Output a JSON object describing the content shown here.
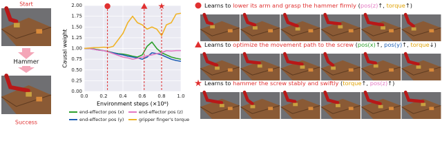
{
  "left": {
    "start": "Start",
    "action": "Hammer",
    "end": "Success"
  },
  "chart_data": {
    "type": "line",
    "ylabel": "Causal weight",
    "xlabel": "Environment steps (×10⁶)",
    "xlim": [
      0,
      1
    ],
    "ylim": [
      0,
      2
    ],
    "xticks": [
      {
        "value": 0,
        "label": "0.0"
      },
      0.2,
      0.4,
      0.6,
      0.8,
      {
        "value": 1,
        "label": "1.0"
      }
    ],
    "yticks": [
      {
        "value": 0,
        "label": "0.00"
      },
      0.25,
      {
        "value": 0.5,
        "label": "0.50"
      },
      0.75,
      {
        "value": 1,
        "label": "1.00"
      },
      1.25,
      {
        "value": 1.5,
        "label": "1.50"
      },
      1.75,
      {
        "value": 2,
        "label": "2.00"
      }
    ],
    "grid": true,
    "vlines": [
      0.24,
      0.62,
      0.8
    ],
    "vline_markers": [
      "circle",
      "triangle",
      "star"
    ],
    "vline_color": "#e03030",
    "x": [
      0,
      0.05,
      0.1,
      0.15,
      0.2,
      0.25,
      0.3,
      0.35,
      0.4,
      0.45,
      0.5,
      0.55,
      0.6,
      0.65,
      0.7,
      0.75,
      0.8,
      0.85,
      0.9,
      0.95,
      1.0
    ],
    "series": [
      {
        "name": "end-effector pos (x)",
        "color": "#2ca02c",
        "values": [
          1.0,
          1.0,
          0.99,
          0.97,
          0.95,
          0.93,
          0.9,
          0.88,
          0.87,
          0.85,
          0.82,
          0.8,
          0.85,
          1.05,
          1.15,
          1.0,
          0.9,
          0.85,
          0.8,
          0.77,
          0.75
        ]
      },
      {
        "name": "end-effector pos (y)",
        "color": "#1f5fb4",
        "values": [
          1.0,
          1.0,
          0.98,
          0.96,
          0.95,
          0.92,
          0.9,
          0.87,
          0.85,
          0.82,
          0.8,
          0.78,
          0.75,
          0.8,
          0.9,
          0.88,
          0.85,
          0.8,
          0.75,
          0.72,
          0.7
        ]
      },
      {
        "name": "end-effector pos (z)",
        "color": "#e377c2",
        "values": [
          1.0,
          1.0,
          0.98,
          0.96,
          0.95,
          0.92,
          0.88,
          0.84,
          0.8,
          0.78,
          0.75,
          0.77,
          0.8,
          0.83,
          0.85,
          0.88,
          0.9,
          0.95,
          0.94,
          0.95,
          0.95
        ]
      },
      {
        "name": "gripper finger's torque",
        "color": "#f0b429",
        "values": [
          1.0,
          1.01,
          1.02,
          1.02,
          1.03,
          1.02,
          1.05,
          1.2,
          1.35,
          1.6,
          1.75,
          1.6,
          1.55,
          1.45,
          1.5,
          1.45,
          1.3,
          1.55,
          1.6,
          1.8,
          1.82
        ]
      }
    ]
  },
  "rows": [
    {
      "marker": "circle",
      "segments": [
        {
          "text": "Learns to ",
          "color": "#111"
        },
        {
          "text": "lower its arm and grasp the hammer firmly",
          "color": "#e03030"
        },
        {
          "text": " (",
          "color": "#111"
        },
        {
          "text": "pos(z)",
          "color": "#e377c2"
        },
        {
          "text": "↑, ",
          "color": "#111"
        },
        {
          "text": "torque",
          "color": "#e0a000"
        },
        {
          "text": "↑)",
          "color": "#111"
        }
      ]
    },
    {
      "marker": "triangle",
      "segments": [
        {
          "text": "Learns to ",
          "color": "#111"
        },
        {
          "text": "optimize the movement path to the screw",
          "color": "#e03030"
        },
        {
          "text": " (",
          "color": "#111"
        },
        {
          "text": "pos(x)",
          "color": "#2ca02c"
        },
        {
          "text": "↑, ",
          "color": "#111"
        },
        {
          "text": "pos(y)",
          "color": "#1f5fb4"
        },
        {
          "text": "↑, ",
          "color": "#111"
        },
        {
          "text": "torque",
          "color": "#e0a000"
        },
        {
          "text": "↓)",
          "color": "#111"
        }
      ]
    },
    {
      "marker": "star",
      "segments": [
        {
          "text": "Learns to ",
          "color": "#111"
        },
        {
          "text": "hammer the screw stably and swiftly",
          "color": "#e03030"
        },
        {
          "text": " (",
          "color": "#111"
        },
        {
          "text": "torque",
          "color": "#e0a000"
        },
        {
          "text": "↑, ",
          "color": "#111"
        },
        {
          "text": "pos(z)",
          "color": "#e377c2"
        },
        {
          "text": "↑)",
          "color": "#111"
        }
      ]
    }
  ]
}
